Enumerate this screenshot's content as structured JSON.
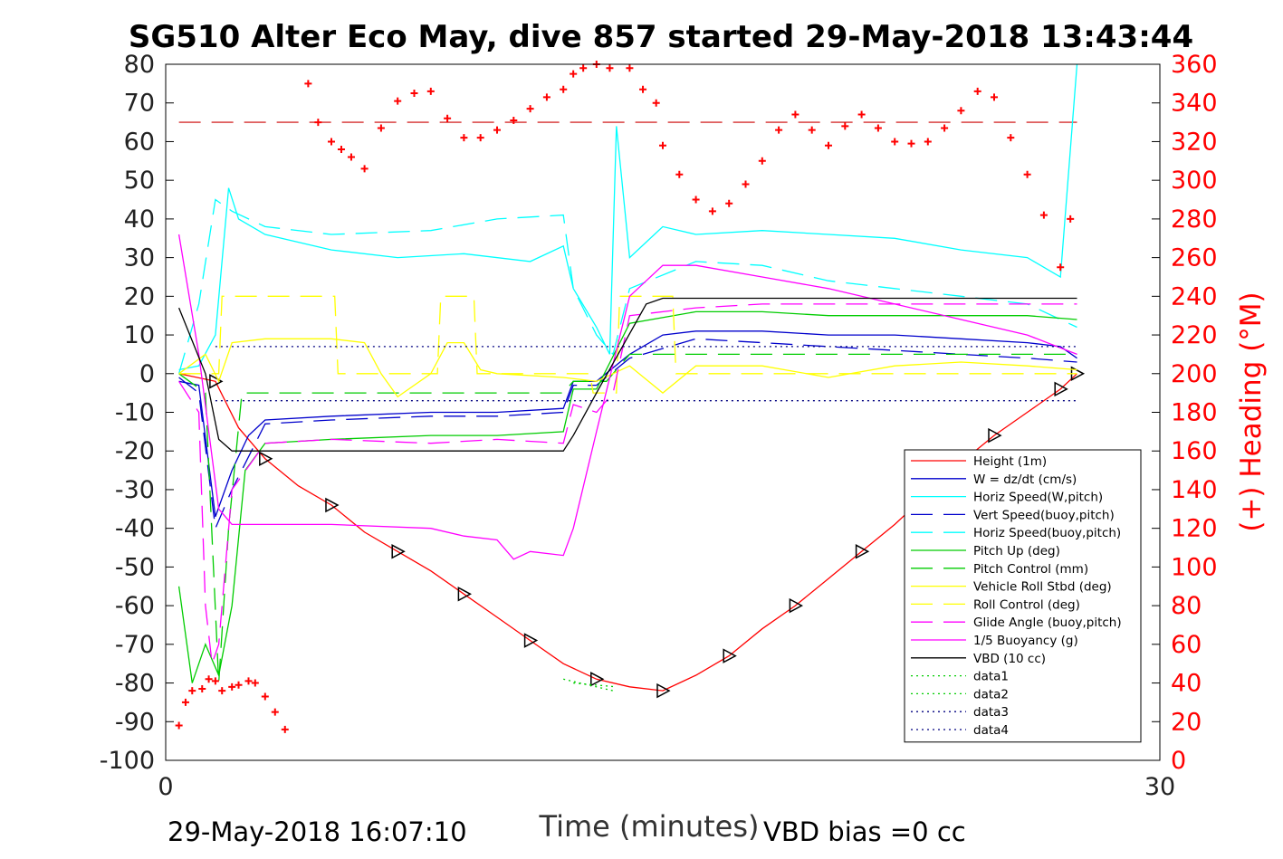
{
  "chart_data": {
    "type": "line",
    "title": "SG510 Alter Eco May, dive 857 started 29-May-2018 13:43:44",
    "xlabel": "Time (minutes)",
    "ylabel": "",
    "y2label": "(+) Heading (°M)",
    "xlim": [
      0,
      30
    ],
    "ylim": [
      -100,
      80
    ],
    "y2lim": [
      0,
      360
    ],
    "x_ticks": [
      "0",
      "30"
    ],
    "y_ticks": [
      "80",
      "70",
      "60",
      "50",
      "40",
      "30",
      "20",
      "10",
      "0",
      "-10",
      "-20",
      "-30",
      "-40",
      "-50",
      "-60",
      "-70",
      "-80",
      "-90",
      "-100"
    ],
    "y2_ticks": [
      "360",
      "340",
      "320",
      "300",
      "280",
      "260",
      "240",
      "220",
      "200",
      "180",
      "160",
      "140",
      "120",
      "100",
      "80",
      "60",
      "40",
      "20",
      "0"
    ],
    "footer_left": "29-May-2018 16:07:10",
    "footer_right": "VBD bias =0 cc",
    "grid": false,
    "legend_position": "lower-right",
    "series": [
      {
        "name": "Height (1m)",
        "color": "#ff0000",
        "style": "solid",
        "axis": "left",
        "markers": "triangle",
        "x": [
          0.4,
          1.5,
          2.2,
          3,
          4,
          5,
          6,
          7,
          8,
          9,
          10,
          11,
          12,
          13,
          14,
          15,
          16,
          17,
          18,
          19,
          20,
          21,
          22,
          23,
          24,
          25,
          26,
          27,
          27.5
        ],
        "y": [
          0,
          -2,
          -14,
          -22,
          -29,
          -34,
          -41,
          -46,
          -51,
          -57,
          -63,
          -69,
          -75,
          -79,
          -81,
          -82,
          -78,
          -73,
          -66,
          -60,
          -53,
          -46,
          -39,
          -31,
          -23,
          -16,
          -10,
          -4,
          0
        ]
      },
      {
        "name": "W = dz/dt (cm/s)",
        "color": "#0000cc",
        "style": "solid",
        "axis": "left",
        "markers": "none",
        "x": [
          0.4,
          1,
          1.5,
          2,
          2.5,
          3,
          5,
          8,
          10,
          12,
          12.3,
          13,
          14,
          15,
          16,
          18,
          20,
          22,
          24,
          26,
          27,
          27.5
        ],
        "y": [
          -2,
          -3,
          -37,
          -25,
          -16,
          -12,
          -11,
          -10,
          -10,
          -9,
          -2,
          -2,
          5,
          10,
          11,
          11,
          10,
          10,
          9,
          8,
          7,
          4
        ]
      },
      {
        "name": "Horiz Speed(W,pitch)",
        "color": "#00ffff",
        "style": "solid",
        "axis": "left",
        "markers": "none",
        "x": [
          0.4,
          1,
          1.5,
          1.9,
          2.2,
          3,
          5,
          7,
          9,
          11,
          12,
          12.3,
          13,
          13.4,
          13.6,
          14,
          15,
          16,
          18,
          20,
          22,
          24,
          26,
          27,
          27.5
        ],
        "y": [
          1,
          2,
          10,
          48,
          40,
          36,
          32,
          30,
          31,
          29,
          33,
          22,
          12,
          5,
          64,
          30,
          38,
          36,
          37,
          36,
          35,
          32,
          30,
          25,
          80
        ]
      },
      {
        "name": "Vert Speed(buoy,pitch)",
        "color": "#0000cc",
        "style": "dashed",
        "axis": "left",
        "markers": "none",
        "x": [
          0.4,
          1,
          1.5,
          2,
          3,
          5,
          8,
          10,
          12,
          12.3,
          13,
          14,
          16,
          18,
          20,
          22,
          24,
          26,
          27.5
        ],
        "y": [
          -1,
          -5,
          -40,
          -30,
          -13,
          -12,
          -11,
          -11,
          -10,
          -3,
          -3,
          4,
          9,
          8,
          7,
          6,
          5,
          4,
          3
        ]
      },
      {
        "name": "Horiz Speed(buoy,pitch)",
        "color": "#00ffff",
        "style": "dashed",
        "axis": "left",
        "markers": "none",
        "x": [
          0.4,
          1,
          1.5,
          2,
          3,
          5,
          8,
          10,
          12,
          12.3,
          13,
          13.5,
          14,
          16,
          18,
          20,
          22,
          24,
          26,
          27.5
        ],
        "y": [
          0,
          18,
          45,
          42,
          38,
          36,
          37,
          40,
          41,
          22,
          10,
          5,
          22,
          29,
          28,
          24,
          22,
          20,
          18,
          12
        ]
      },
      {
        "name": "Pitch Up (deg)",
        "color": "#00cc00",
        "style": "solid",
        "axis": "left",
        "markers": "none",
        "x": [
          0.4,
          0.8,
          1.2,
          1.6,
          2,
          2.4,
          3,
          5,
          8,
          10,
          12,
          12.3,
          13,
          14,
          16,
          18,
          20,
          22,
          24,
          26,
          27.5
        ],
        "y": [
          -55,
          -80,
          -70,
          -78,
          -60,
          -25,
          -18,
          -17,
          -16,
          -16,
          -15,
          -4,
          -4,
          13,
          16,
          16,
          15,
          15,
          15,
          15,
          14
        ]
      },
      {
        "name": "Pitch Control (mm)",
        "color": "#00cc00",
        "style": "dashed",
        "axis": "left",
        "markers": "none",
        "x": [
          0.4,
          1.2,
          1.6,
          1.9,
          2.3,
          3,
          12,
          12.3,
          13.3,
          14,
          27.5
        ],
        "y": [
          0,
          -5,
          -80,
          -40,
          -5,
          -5,
          -5,
          -2,
          -2,
          5,
          5
        ]
      },
      {
        "name": "Vehicle Roll Stbd (deg)",
        "color": "#ffff00",
        "style": "solid",
        "axis": "left",
        "markers": "none",
        "x": [
          0.4,
          1.2,
          1.6,
          2,
          3,
          5,
          6,
          6.5,
          7,
          8,
          8.5,
          9,
          9.5,
          10,
          12,
          13,
          14,
          15,
          16,
          18,
          20,
          22,
          24,
          26,
          27.5
        ],
        "y": [
          0,
          5,
          -2,
          8,
          9,
          9,
          8,
          0,
          -6,
          0,
          8,
          8,
          1,
          0,
          -1,
          -2,
          2,
          -5,
          2,
          2,
          -1,
          2,
          3,
          2,
          1
        ]
      },
      {
        "name": "Roll Control (deg)",
        "color": "#ffff00",
        "style": "dashed",
        "axis": "left",
        "markers": "none",
        "x": [
          0.4,
          1.6,
          1.7,
          5.1,
          5.2,
          8.2,
          8.3,
          9.3,
          9.4,
          12.8,
          12.9,
          13.6,
          13.7,
          15.3,
          15.4,
          27.5
        ],
        "y": [
          0,
          0,
          20,
          20,
          0,
          0,
          20,
          20,
          0,
          0,
          -5,
          -5,
          20,
          20,
          0,
          0
        ]
      },
      {
        "name": "Glide Angle (buoy,pitch)",
        "color": "#ff00ff",
        "style": "dashed",
        "axis": "left",
        "markers": "none",
        "x": [
          0.4,
          1,
          1.2,
          1.4,
          1.6,
          2,
          3,
          5,
          8,
          10,
          12,
          12.3,
          13,
          13.5,
          14,
          16,
          18,
          20,
          22,
          24,
          26,
          27.5
        ],
        "y": [
          -2,
          -10,
          -60,
          -75,
          -70,
          -30,
          -18,
          -17,
          -18,
          -17,
          -18,
          -8,
          -10,
          -5,
          15,
          17,
          18,
          18,
          18,
          18,
          18,
          18
        ]
      },
      {
        "name": "1/5 Buoyancy (g)",
        "color": "#ff00ff",
        "style": "solid",
        "axis": "left",
        "markers": "none",
        "x": [
          0.4,
          1,
          1.6,
          2,
          3,
          5,
          8,
          9,
          10,
          10.5,
          11,
          12,
          12.3,
          13,
          14,
          15,
          16,
          18,
          20,
          22,
          24,
          26,
          27.5
        ],
        "y": [
          36,
          5,
          -35,
          -39,
          -39,
          -39,
          -40,
          -42,
          -43,
          -48,
          -46,
          -47,
          -40,
          -15,
          20,
          28,
          28,
          25,
          22,
          18,
          14,
          10,
          5
        ]
      },
      {
        "name": "VBD (10 cc)",
        "color": "#000000",
        "style": "solid",
        "axis": "left",
        "markers": "none",
        "x": [
          0.4,
          1.2,
          1.6,
          2,
          3,
          12,
          12.3,
          13,
          14.5,
          15,
          27.5
        ],
        "y": [
          17,
          0,
          -17,
          -20,
          -20,
          -20,
          -16,
          -5,
          18,
          19.5,
          19.5
        ]
      },
      {
        "name": "data1",
        "color": "#00cc00",
        "style": "dotted",
        "axis": "left",
        "markers": "none",
        "x": [
          12,
          13.5
        ],
        "y": [
          -79,
          -82
        ]
      },
      {
        "name": "data2",
        "color": "#00cc00",
        "style": "dotted",
        "axis": "left",
        "markers": "none",
        "x": [
          12.3,
          13.6
        ],
        "y": [
          -80,
          -81
        ]
      },
      {
        "name": "data3",
        "color": "#000080",
        "style": "dotted",
        "axis": "left",
        "markers": "none",
        "x": [
          1.5,
          27.5
        ],
        "y": [
          7,
          7
        ]
      },
      {
        "name": "data4",
        "color": "#000080",
        "style": "dotted",
        "axis": "left",
        "markers": "none",
        "x": [
          1.5,
          27.5
        ],
        "y": [
          -7,
          -7
        ]
      }
    ],
    "heading_series": {
      "name": "Heading",
      "color": "#ff0000",
      "marker": "+",
      "axis": "right",
      "x": [
        0.4,
        0.6,
        0.8,
        1.1,
        1.3,
        1.5,
        1.7,
        2,
        2.2,
        2.5,
        2.7,
        3,
        3.3,
        3.6,
        4.3,
        4.6,
        5,
        5.3,
        5.6,
        6,
        6.5,
        7,
        7.5,
        8,
        8.5,
        9,
        9.5,
        10,
        10.5,
        11,
        11.5,
        12,
        12.3,
        12.6,
        13,
        13.4,
        14,
        14.4,
        14.8,
        15,
        15.5,
        16,
        16.5,
        17,
        17.5,
        18,
        18.5,
        19,
        19.5,
        20,
        20.5,
        21,
        21.5,
        22,
        22.5,
        23,
        23.5,
        24,
        24.5,
        25,
        25.5,
        26,
        26.5,
        27,
        27.3
      ],
      "y": [
        18,
        30,
        36,
        37,
        42,
        41,
        36,
        38,
        39,
        41,
        40,
        33,
        25,
        16,
        350,
        330,
        320,
        316,
        312,
        306,
        327,
        341,
        345,
        346,
        332,
        322,
        322,
        326,
        331,
        337,
        343,
        347,
        355,
        358,
        360,
        358,
        358,
        347,
        340,
        318,
        303,
        290,
        284,
        288,
        298,
        310,
        326,
        334,
        326,
        318,
        328,
        334,
        327,
        320,
        319,
        320,
        327,
        336,
        346,
        343,
        322,
        303,
        282,
        255,
        280
      ]
    },
    "reference_lines": [
      {
        "axis": "right",
        "y": 330,
        "color": "#cc0000",
        "style": "dashed"
      }
    ]
  }
}
